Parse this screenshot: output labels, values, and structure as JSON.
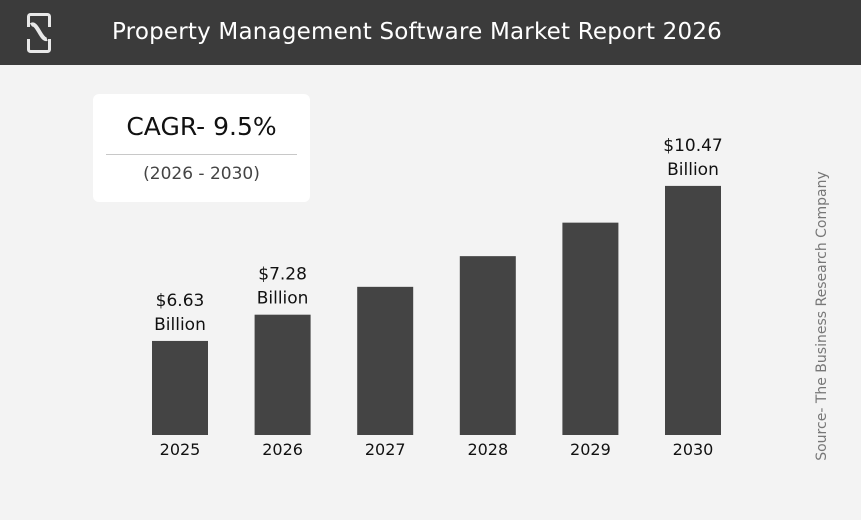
{
  "header": {
    "title": "Property Management Software Market Report 2026",
    "logo_icon": "tbrc-logo-icon"
  },
  "cagr": {
    "value": "CAGR- 9.5%",
    "period": "(2026 - 2030)"
  },
  "source": "Source- The Business Research Company",
  "chart_data": {
    "type": "bar",
    "title": "Property Management Software Market Report 2026",
    "categories": [
      "2025",
      "2026",
      "2027",
      "2028",
      "2029",
      "2030"
    ],
    "values": [
      6.63,
      7.28,
      7.97,
      8.73,
      9.56,
      10.47
    ],
    "data_labels": [
      {
        "index": 0,
        "amount": "$6.63",
        "unit": "Billion"
      },
      {
        "index": 1,
        "amount": "$7.28",
        "unit": "Billion"
      },
      {
        "index": 5,
        "amount": "$10.47",
        "unit": "Billion"
      }
    ],
    "xlabel": "",
    "ylabel": "",
    "grid": false,
    "bar_color": "#444444",
    "header_color": "#3b3b3b",
    "background_color": "#f3f3f3"
  }
}
